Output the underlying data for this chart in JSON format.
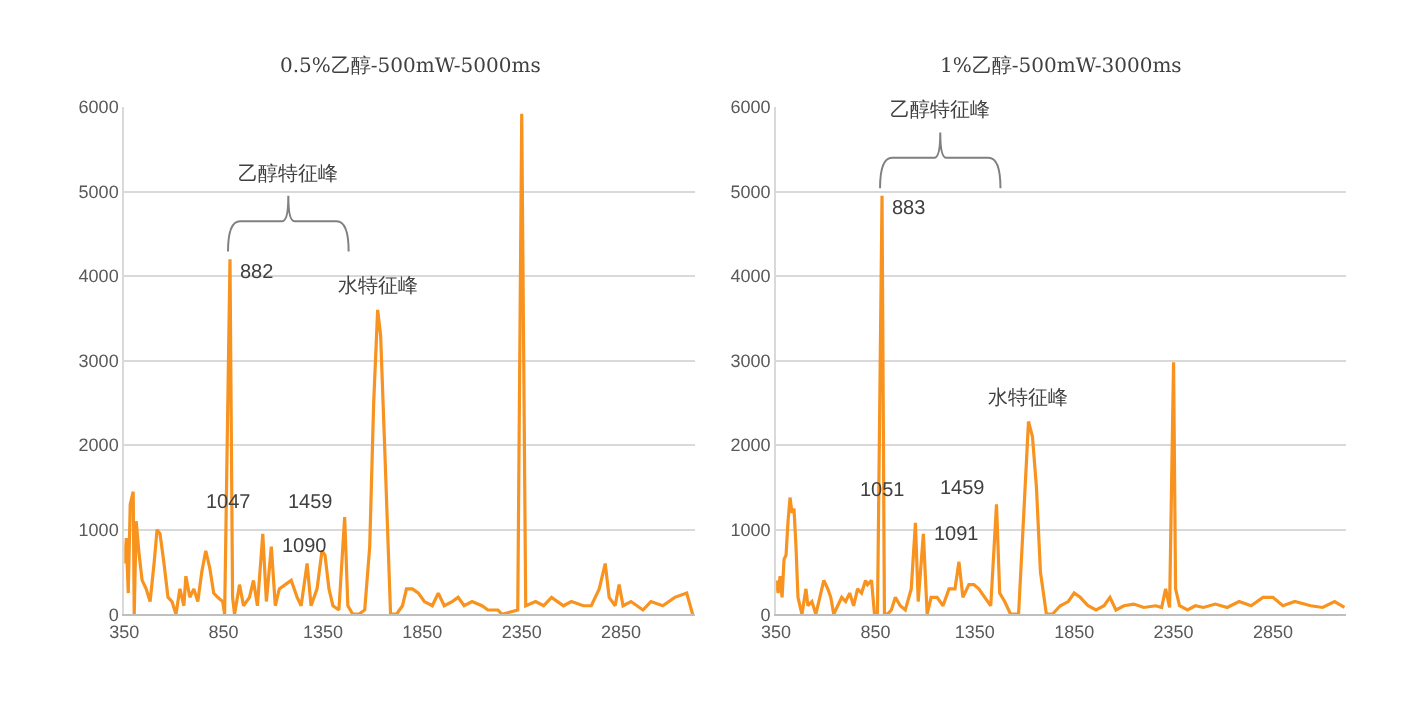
{
  "chart_data": [
    {
      "type": "line",
      "title": "0.5%乙醇-500mW-5000ms",
      "xlim": [
        350,
        3220
      ],
      "xticks": [
        350,
        850,
        1350,
        1850,
        2350,
        2850
      ],
      "ylim": [
        0,
        6000
      ],
      "yticks": [
        0,
        1000,
        2000,
        3000,
        4000,
        5000,
        6000
      ],
      "grid": "y",
      "marker": "none",
      "line_style": "solid",
      "series": [
        {
          "color": "#f7931e",
          "x": [
            350,
            360,
            370,
            380,
            395,
            400,
            410,
            425,
            440,
            460,
            480,
            500,
            515,
            530,
            550,
            570,
            590,
            610,
            630,
            650,
            660,
            680,
            700,
            720,
            740,
            760,
            780,
            800,
            820,
            845,
            855,
            882,
            895,
            905,
            930,
            950,
            980,
            1000,
            1020,
            1047,
            1065,
            1090,
            1110,
            1130,
            1160,
            1190,
            1220,
            1240,
            1270,
            1290,
            1320,
            1345,
            1360,
            1380,
            1400,
            1430,
            1459,
            1475,
            1500,
            1530,
            1560,
            1585,
            1605,
            1625,
            1640,
            1660,
            1690,
            1720,
            1750,
            1770,
            1800,
            1830,
            1860,
            1900,
            1930,
            1960,
            2000,
            2030,
            2060,
            2100,
            2150,
            2180,
            2230,
            2250,
            2330,
            2350,
            2370,
            2420,
            2460,
            2500,
            2560,
            2600,
            2660,
            2700,
            2740,
            2770,
            2790,
            2820,
            2840,
            2860,
            2900,
            2960,
            3000,
            3060,
            3120,
            3180,
            3210
          ],
          "values": [
            600,
            900,
            250,
            1300,
            1450,
            0,
            1100,
            700,
            400,
            300,
            150,
            600,
            1000,
            950,
            600,
            200,
            150,
            0,
            300,
            100,
            450,
            200,
            300,
            150,
            500,
            750,
            550,
            250,
            200,
            150,
            0,
            4200,
            200,
            0,
            350,
            100,
            200,
            400,
            100,
            950,
            150,
            800,
            100,
            300,
            350,
            400,
            200,
            100,
            600,
            100,
            300,
            750,
            700,
            300,
            100,
            50,
            1150,
            100,
            0,
            0,
            50,
            800,
            2500,
            3600,
            3300,
            2000,
            0,
            0,
            100,
            300,
            300,
            250,
            150,
            100,
            250,
            100,
            150,
            200,
            100,
            150,
            100,
            50,
            50,
            0,
            50,
            5920,
            100,
            150,
            100,
            200,
            100,
            150,
            100,
            100,
            300,
            600,
            200,
            100,
            350,
            100,
            150,
            50,
            150,
            100,
            200,
            250,
            0
          ]
        }
      ],
      "annotations": [
        "乙醇特征峰",
        {
          "text": "水特征峰",
          "x": 1625,
          "y": 3600
        },
        {
          "text": "882",
          "x": 882,
          "y": 4200
        },
        {
          "text": "1047",
          "x": 1047,
          "y": 950
        },
        {
          "text": "1090",
          "x": 1090,
          "y": 800
        },
        {
          "text": "1459",
          "x": 1459,
          "y": 1150
        }
      ]
    },
    {
      "type": "line",
      "title": "1%乙醇-500mW-3000ms",
      "xlim": [
        350,
        3220
      ],
      "xticks": [
        350,
        850,
        1350,
        1850,
        2350,
        2850
      ],
      "ylim": [
        0,
        6000
      ],
      "yticks": [
        0,
        1000,
        2000,
        3000,
        4000,
        5000,
        6000
      ],
      "grid": "y",
      "marker": "none",
      "line_style": "solid",
      "series": [
        {
          "color": "#f7931e",
          "x": [
            350,
            360,
            370,
            380,
            390,
            400,
            410,
            420,
            430,
            440,
            450,
            460,
            470,
            480,
            500,
            510,
            530,
            550,
            570,
            590,
            610,
            625,
            640,
            660,
            680,
            700,
            720,
            740,
            760,
            780,
            800,
            810,
            830,
            845,
            860,
            883,
            895,
            910,
            930,
            950,
            975,
            1000,
            1030,
            1051,
            1065,
            1091,
            1110,
            1130,
            1160,
            1190,
            1220,
            1250,
            1270,
            1290,
            1320,
            1345,
            1370,
            1400,
            1430,
            1459,
            1475,
            1500,
            1530,
            1570,
            1590,
            1620,
            1640,
            1660,
            1680,
            1710,
            1740,
            1780,
            1820,
            1850,
            1880,
            1920,
            1960,
            2000,
            2030,
            2060,
            2100,
            2150,
            2200,
            2260,
            2290,
            2310,
            2330,
            2350,
            2360,
            2380,
            2420,
            2460,
            2500,
            2560,
            2620,
            2680,
            2740,
            2800,
            2850,
            2900,
            2960,
            3040,
            3100,
            3160,
            3210
          ],
          "values": [
            400,
            250,
            450,
            200,
            650,
            700,
            1100,
            1380,
            1200,
            1250,
            800,
            200,
            100,
            0,
            300,
            100,
            150,
            0,
            200,
            400,
            300,
            200,
            0,
            100,
            200,
            150,
            250,
            100,
            300,
            250,
            400,
            350,
            400,
            0,
            0,
            4950,
            0,
            0,
            50,
            200,
            100,
            50,
            300,
            1080,
            150,
            950,
            0,
            200,
            200,
            100,
            300,
            300,
            620,
            200,
            350,
            350,
            300,
            200,
            100,
            1300,
            250,
            150,
            0,
            0,
            900,
            2280,
            2100,
            1500,
            500,
            0,
            0,
            100,
            150,
            250,
            200,
            100,
            50,
            100,
            200,
            50,
            100,
            120,
            80,
            100,
            80,
            300,
            80,
            2980,
            300,
            100,
            50,
            100,
            80,
            120,
            80,
            150,
            100,
            200,
            200,
            100,
            150,
            100,
            80,
            150,
            80
          ]
        }
      ],
      "annotations": [
        "乙醇特征峰",
        {
          "text": "水特征峰",
          "x": 1620,
          "y": 2280
        },
        {
          "text": "883",
          "x": 883,
          "y": 4950
        },
        {
          "text": "1051",
          "x": 1051,
          "y": 1080
        },
        {
          "text": "1091",
          "x": 1091,
          "y": 950
        },
        {
          "text": "1459",
          "x": 1459,
          "y": 1300
        }
      ]
    }
  ]
}
